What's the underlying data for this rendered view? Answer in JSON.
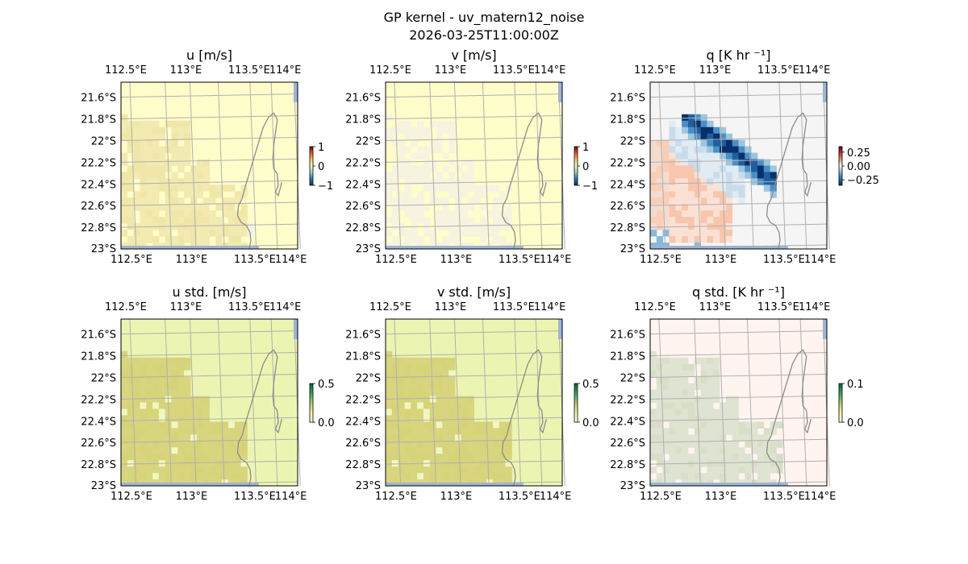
{
  "figure": {
    "title_line1": "GP kernel - uv_matern12_noise",
    "title_line2": "2026-03-25T11:00:00Z"
  },
  "colors": {
    "land_outline": "#8c8c8c",
    "grid": "#b0b0b0",
    "ocean_strip": "#97b6e1"
  },
  "chart_data": [
    {
      "type": "heatmap",
      "title": "u [m/s]",
      "xticks": [
        "112.5°E",
        "113°E",
        "113.5°E",
        "114°E"
      ],
      "yticks": [
        "21.6°S",
        "21.8°S",
        "22°S",
        "22.2°S",
        "22.4°S",
        "22.6°S",
        "22.8°S",
        "23°S"
      ],
      "colorbar": {
        "ticks": [
          "1",
          "0",
          "−1"
        ],
        "range": [
          -1,
          1
        ]
      },
      "field": "u",
      "base_color": "#fffdca",
      "feature_color": "#f2eab0"
    },
    {
      "type": "heatmap",
      "title": "v [m/s]",
      "xticks": [
        "112.5°E",
        "113°E",
        "113.5°E",
        "114°E"
      ],
      "yticks": [
        "21.6°S",
        "21.8°S",
        "22°S",
        "22.2°S",
        "22.4°S",
        "22.6°S",
        "22.8°S",
        "23°S"
      ],
      "colorbar": {
        "ticks": [
          "1",
          "0",
          "−1"
        ],
        "range": [
          -1,
          1
        ]
      },
      "field": "v",
      "base_color": "#fffdca",
      "feature_color": "#f6f4df"
    },
    {
      "type": "heatmap",
      "title": "q [K hr ⁻¹]",
      "xticks": [
        "112.5°E",
        "113°E",
        "113.5°E",
        "114°E"
      ],
      "yticks": [
        "21.6°S",
        "21.8°S",
        "22°S",
        "22.2°S",
        "22.4°S",
        "22.6°S",
        "22.8°S",
        "23°S"
      ],
      "colorbar": {
        "ticks": [
          "0.25",
          "0.00",
          "−0.25"
        ],
        "range": [
          -0.35,
          0.35
        ]
      },
      "field": "q",
      "base_color": "#f5f5f5",
      "feature_color": "#2166ac"
    },
    {
      "type": "heatmap",
      "title": "u std. [m/s]",
      "xticks": [
        "112.5°E",
        "113°E",
        "113.5°E",
        "114°E"
      ],
      "yticks": [
        "21.6°S",
        "21.8°S",
        "22°S",
        "22.2°S",
        "22.4°S",
        "22.6°S",
        "22.8°S",
        "23°S"
      ],
      "colorbar": {
        "ticks": [
          "0.5",
          "0.0"
        ],
        "range": [
          0,
          0.5
        ]
      },
      "field": "ustd",
      "base_color": "#ebf5b1",
      "feature_color": "#d8d57e"
    },
    {
      "type": "heatmap",
      "title": "v std. [m/s]",
      "xticks": [
        "112.5°E",
        "113°E",
        "113.5°E",
        "114°E"
      ],
      "yticks": [
        "21.6°S",
        "21.8°S",
        "22°S",
        "22.2°S",
        "22.4°S",
        "22.6°S",
        "22.8°S",
        "23°S"
      ],
      "colorbar": {
        "ticks": [
          "0.5",
          "0.0"
        ],
        "range": [
          0,
          0.5
        ]
      },
      "field": "vstd",
      "base_color": "#ebf5b1",
      "feature_color": "#d8d57e"
    },
    {
      "type": "heatmap",
      "title": "q std. [K hr ⁻¹]",
      "xticks": [
        "112.5°E",
        "113°E",
        "113.5°E",
        "114°E"
      ],
      "yticks": [
        "21.6°S",
        "21.8°S",
        "22°S",
        "22.2°S",
        "22.4°S",
        "22.6°S",
        "22.8°S",
        "23°S"
      ],
      "colorbar": {
        "ticks": [
          "0.1",
          "0.0"
        ],
        "range": [
          0,
          0.1
        ]
      },
      "field": "qstd",
      "base_color": "#fff4f0",
      "feature_color": "#dfe3d2"
    }
  ]
}
